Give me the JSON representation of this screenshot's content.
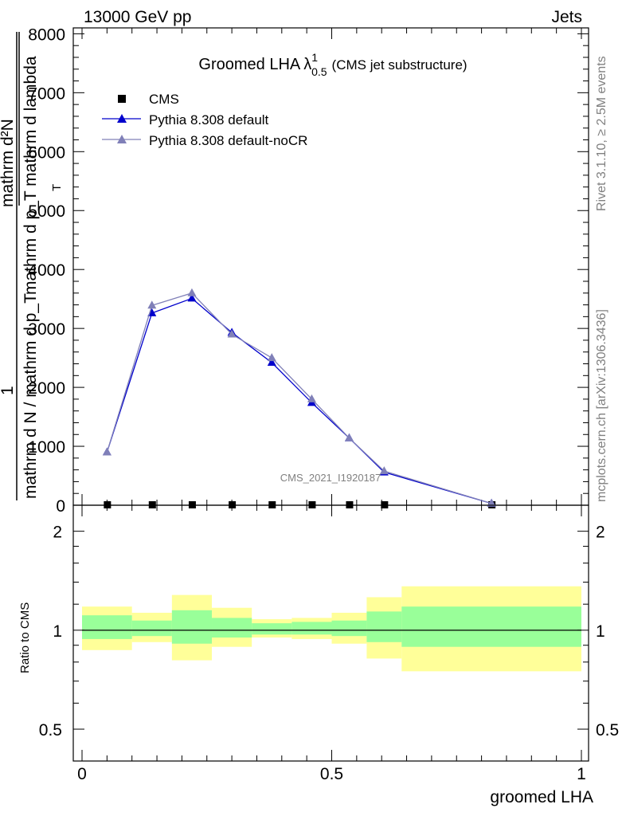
{
  "header": {
    "left": "13000 GeV pp",
    "right": "Jets"
  },
  "side_labels": {
    "rivet": "Rivet 3.1.10, ≥ 2.5M events",
    "mcplots": "mcplots.cern.ch [arXiv:1306.3436]"
  },
  "watermark": "CMS_2021_I1920187",
  "chart_data": {
    "type": "line",
    "title": {
      "main": "Groomed LHA",
      "lambda": "λ",
      "sup": "1",
      "sub": "0.5",
      "note": "(CMS jet substructure)"
    },
    "ylabel": {
      "prefix": "1",
      "top_num": "mathrm d²N",
      "top_den": "mathrm d p_T mathrm d lambda",
      "frac_line_sub": "T",
      "main_den": "mathrm d N / mathrm d p_T"
    },
    "xlabel": "groomed LHA",
    "xlim": [
      0,
      1
    ],
    "ylim": [
      0,
      8100
    ],
    "yticks": [
      "0",
      "1000",
      "2000",
      "3000",
      "4000",
      "5000",
      "6000",
      "7000",
      "8000"
    ],
    "xticks": [
      "0",
      "0.5",
      "1"
    ],
    "legend_position": "top-left",
    "x": [
      0.05,
      0.14,
      0.22,
      0.3,
      0.38,
      0.46,
      0.535,
      0.605,
      0.82
    ],
    "bin_edges": [
      0.0,
      0.1,
      0.18,
      0.26,
      0.34,
      0.42,
      0.5,
      0.57,
      0.64,
      1.0
    ],
    "series": [
      {
        "name": "CMS",
        "color": "#000000",
        "marker": "square",
        "values": [
          0,
          0,
          0,
          0,
          0,
          0,
          0,
          0,
          0
        ]
      },
      {
        "name": "Pythia 8.308 default",
        "color": "#0000cc",
        "marker": "triangle",
        "values": [
          900,
          3260,
          3510,
          2930,
          2420,
          1740,
          1140,
          560,
          30
        ]
      },
      {
        "name": "Pythia 8.308 default-noCR",
        "color": "#8080b8",
        "marker": "triangle",
        "values": [
          900,
          3390,
          3600,
          2900,
          2500,
          1800,
          1140,
          580,
          30
        ]
      }
    ],
    "ratio": {
      "ylabel": "Ratio to CMS",
      "yticks": [
        "0.5",
        "1",
        "2"
      ],
      "log_scale": true,
      "ylim": [
        0.4,
        2.4
      ],
      "reference": 1,
      "bands": [
        {
          "x0": 0.0,
          "x1": 0.1,
          "inner": [
            0.94,
            1.11
          ],
          "outer": [
            0.87,
            1.18
          ]
        },
        {
          "x0": 0.1,
          "x1": 0.18,
          "inner": [
            0.96,
            1.07
          ],
          "outer": [
            0.92,
            1.13
          ]
        },
        {
          "x0": 0.18,
          "x1": 0.26,
          "inner": [
            0.91,
            1.15
          ],
          "outer": [
            0.81,
            1.28
          ]
        },
        {
          "x0": 0.26,
          "x1": 0.34,
          "inner": [
            0.95,
            1.09
          ],
          "outer": [
            0.89,
            1.17
          ]
        },
        {
          "x0": 0.34,
          "x1": 0.42,
          "inner": [
            0.97,
            1.05
          ],
          "outer": [
            0.95,
            1.08
          ]
        },
        {
          "x0": 0.42,
          "x1": 0.5,
          "inner": [
            0.97,
            1.06
          ],
          "outer": [
            0.94,
            1.09
          ]
        },
        {
          "x0": 0.5,
          "x1": 0.57,
          "inner": [
            0.96,
            1.07
          ],
          "outer": [
            0.91,
            1.13
          ]
        },
        {
          "x0": 0.57,
          "x1": 0.64,
          "inner": [
            0.92,
            1.14
          ],
          "outer": [
            0.82,
            1.26
          ]
        },
        {
          "x0": 0.64,
          "x1": 1.0,
          "inner": [
            0.89,
            1.18
          ],
          "outer": [
            0.75,
            1.36
          ]
        }
      ],
      "inner_color": "#99ff99",
      "outer_color": "#ffff99"
    }
  }
}
